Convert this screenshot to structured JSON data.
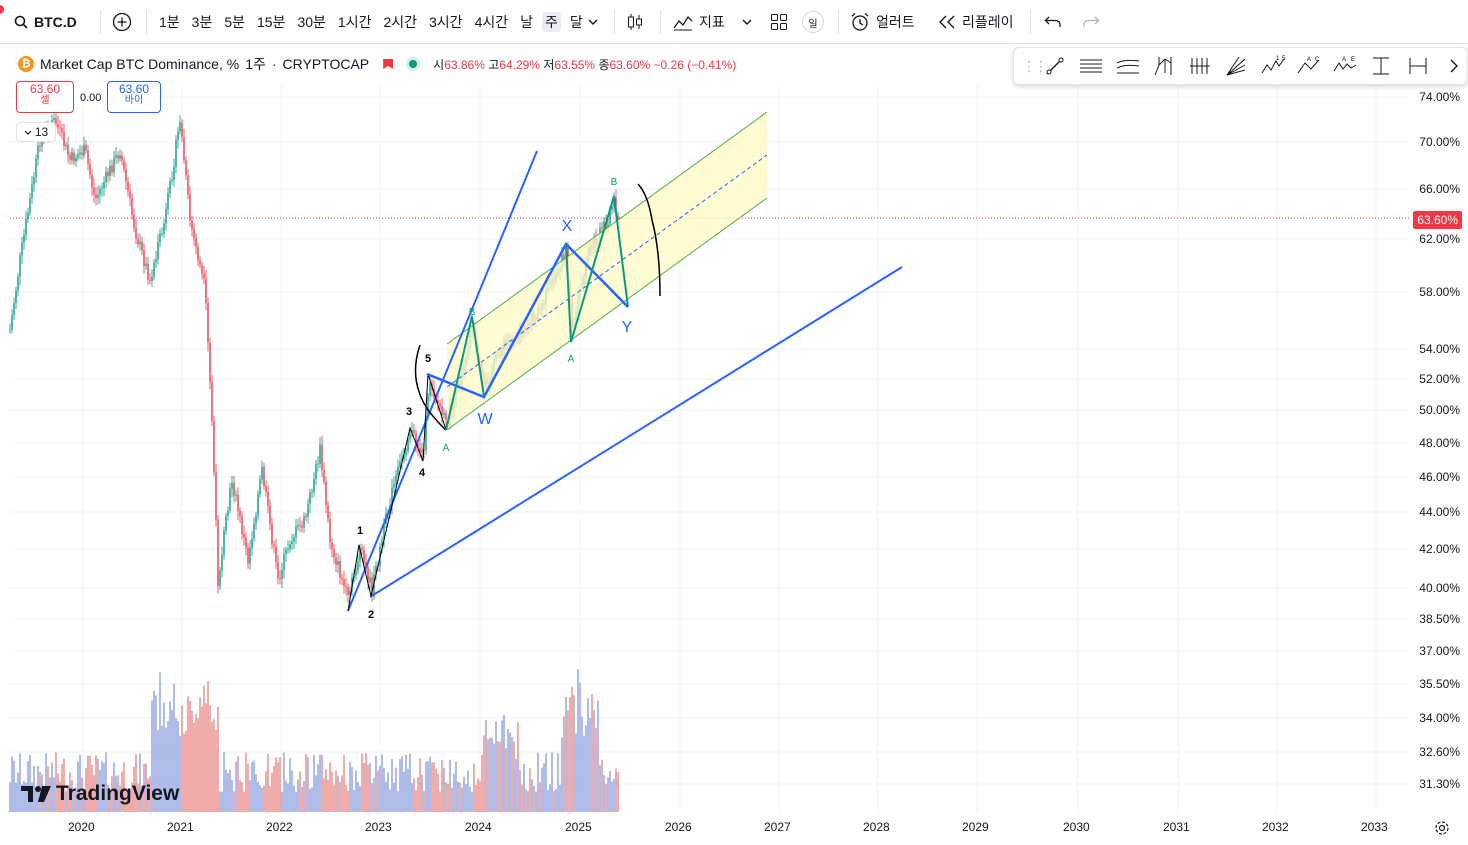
{
  "toolbar": {
    "symbol": "BTC.D",
    "timeframes": [
      "1분",
      "3분",
      "5분",
      "15분",
      "30분",
      "1시간",
      "2시간",
      "3시간",
      "4시간",
      "날",
      "주",
      "달"
    ],
    "active_timeframe": "주",
    "indicators_label": "지표",
    "alert_label": "얼러트",
    "replay_label": "리플레이",
    "layout_badge": "일"
  },
  "legend": {
    "title": "Market Cap BTC Dominance, %",
    "interval": "1주",
    "exchange": "CRYPTOCAP",
    "open_key": "시",
    "open": "63.86%",
    "high_key": "고",
    "high": "64.29%",
    "low_key": "저",
    "low": "63.55%",
    "close_key": "종",
    "close": "63.60%",
    "change": "−0.26 (−0.41%)"
  },
  "trade": {
    "sell_price": "63.60",
    "sell_label": "셀",
    "spread": "0.00",
    "buy_price": "63.60",
    "buy_label": "바이"
  },
  "indicator_count": "13",
  "price_axis": [
    "74.00%",
    "70.00%",
    "66.00%",
    "62.00%",
    "58.00%",
    "54.00%",
    "52.00%",
    "50.00%",
    "48.00%",
    "46.00%",
    "44.00%",
    "42.00%",
    "40.00%",
    "38.50%",
    "37.00%",
    "35.50%",
    "34.00%",
    "32.60%",
    "31.30%"
  ],
  "last_price": "63.60%",
  "time_axis": [
    "2020",
    "2021",
    "2022",
    "2023",
    "2024",
    "2025",
    "2026",
    "2027",
    "2028",
    "2029",
    "2030",
    "2031",
    "2032",
    "2033"
  ],
  "watermark": "TradingView",
  "annotations": {
    "wave1": "1",
    "wave2": "2",
    "wave3": "3",
    "wave4": "4",
    "wave5": "5",
    "w": "W",
    "x": "X",
    "y": "Y",
    "a1": "A",
    "b1": "B",
    "a2": "A",
    "b2": "B"
  },
  "colors": {
    "up": "#089981",
    "down": "#f23645",
    "blue_line": "#2962ff",
    "channel": "#fff9c4"
  }
}
